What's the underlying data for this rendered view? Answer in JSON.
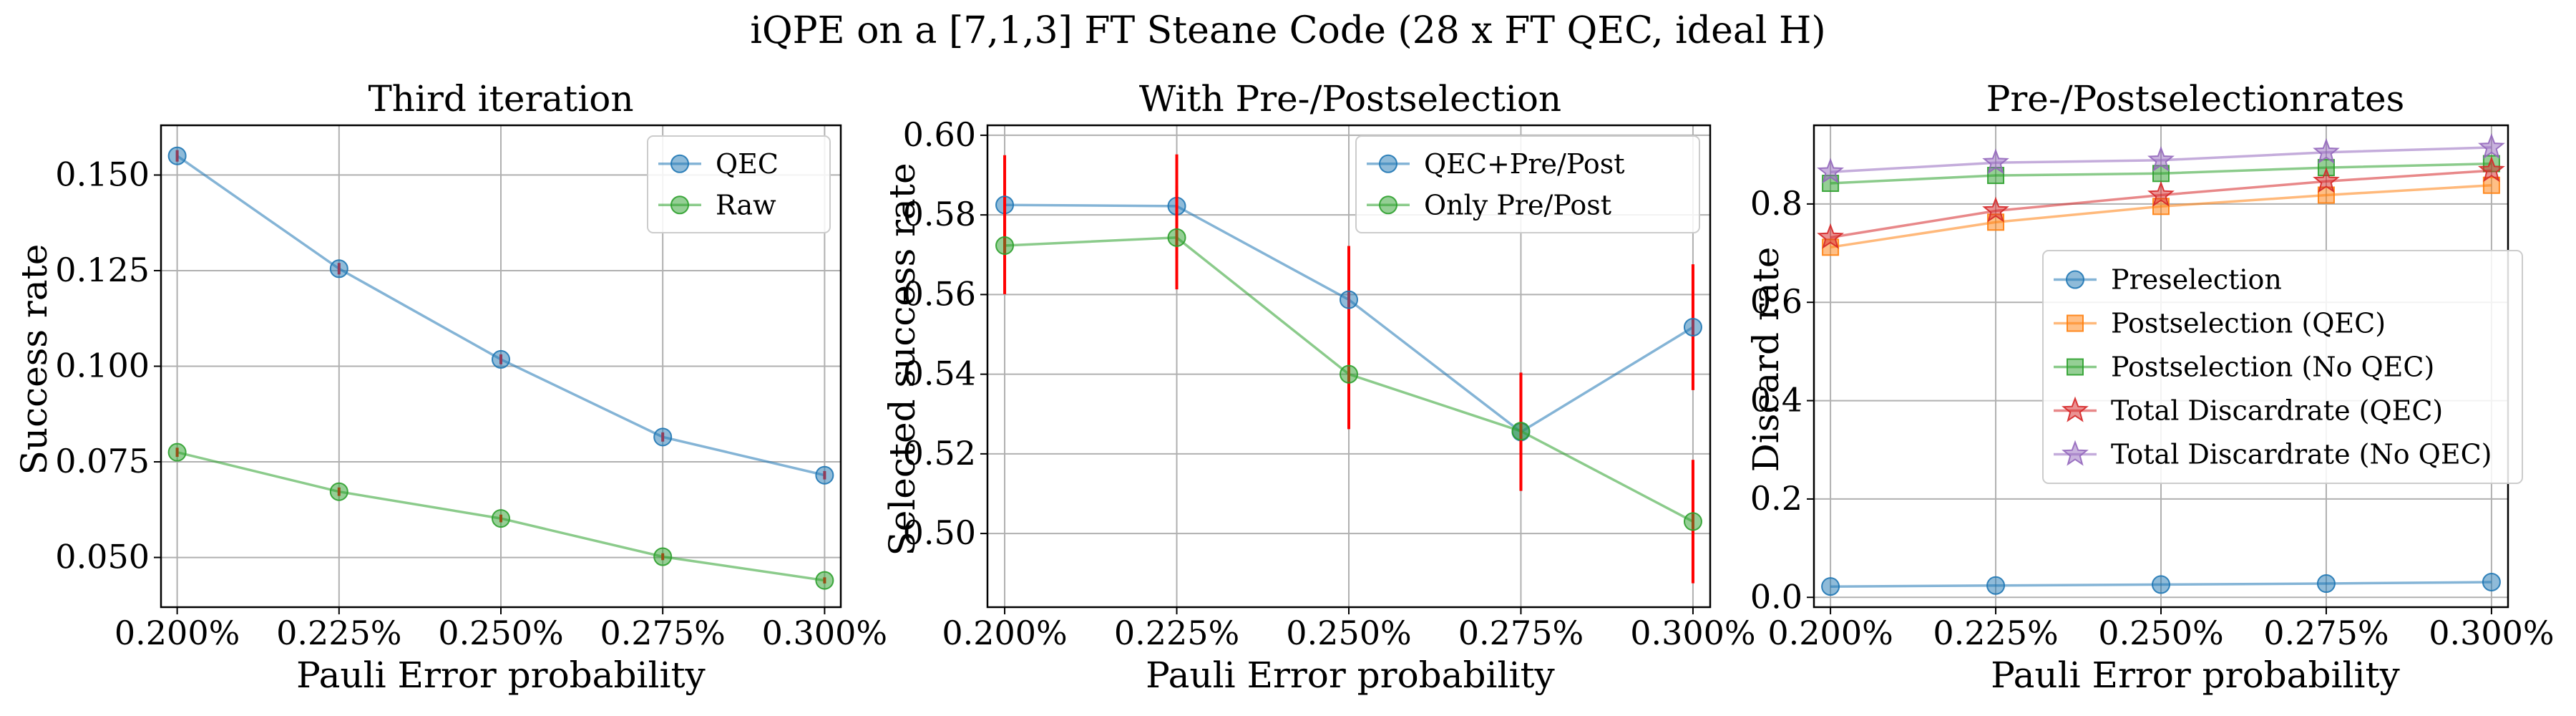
{
  "figure_title": "iQPE on a [7,1,3] FT Steane Code (28 x FT QEC, ideal H)",
  "colors": {
    "blue": "#1f77b4",
    "green": "#2ca02c",
    "orange": "#ff7f0e",
    "red": "#d62728",
    "purple": "#9467bd",
    "errorbar": "#ff0000"
  },
  "chart_data": [
    {
      "type": "line",
      "title": "Third iteration",
      "xlabel": "Pauli Error probability",
      "ylabel": "Success rate",
      "x": [
        0.2,
        0.225,
        0.25,
        0.275,
        0.3
      ],
      "xtick_labels": [
        "0.200%",
        "0.225%",
        "0.250%",
        "0.275%",
        "0.300%"
      ],
      "xlim": [
        0.1975,
        0.3025
      ],
      "ylim": [
        0.037,
        0.163
      ],
      "yticks": [
        0.05,
        0.075,
        0.1,
        0.125,
        0.15
      ],
      "ytick_labels": [
        "0.050",
        "0.075",
        "0.100",
        "0.125",
        "0.150"
      ],
      "grid": true,
      "legend_loc": "upper right",
      "series": [
        {
          "name": "QEC",
          "values": [
            0.155,
            0.1255,
            0.1018,
            0.0815,
            0.0715
          ],
          "err": [
            0.0015,
            0.0015,
            0.0013,
            0.0012,
            0.0011
          ],
          "color": "blue",
          "marker": "circle"
        },
        {
          "name": "Raw",
          "values": [
            0.0775,
            0.0672,
            0.0602,
            0.0502,
            0.044
          ],
          "err": [
            0.0012,
            0.0011,
            0.001,
            0.0009,
            0.0008
          ],
          "color": "green",
          "marker": "circle"
        }
      ]
    },
    {
      "type": "line",
      "title": "With Pre-/Postselection",
      "xlabel": "Pauli Error probability",
      "ylabel": "Selected success rate",
      "x": [
        0.2,
        0.225,
        0.25,
        0.275,
        0.3
      ],
      "xtick_labels": [
        "0.200%",
        "0.225%",
        "0.250%",
        "0.275%",
        "0.300%"
      ],
      "xlim": [
        0.1975,
        0.3025
      ],
      "ylim": [
        0.4815,
        0.6025
      ],
      "yticks": [
        0.5,
        0.52,
        0.54,
        0.56,
        0.58,
        0.6
      ],
      "ytick_labels": [
        "0.50",
        "0.52",
        "0.54",
        "0.56",
        "0.58",
        "0.60"
      ],
      "grid": true,
      "legend_loc": "upper right",
      "series": [
        {
          "name": "QEC+Pre/Post",
          "values": [
            0.5825,
            0.5822,
            0.5587,
            0.5255,
            0.5518
          ],
          "err": [
            0.0125,
            0.013,
            0.0135,
            0.0148,
            0.0158
          ],
          "color": "blue",
          "marker": "circle"
        },
        {
          "name": "Only Pre/Post",
          "values": [
            0.5723,
            0.5743,
            0.54,
            0.5257,
            0.503
          ],
          "err": [
            0.0122,
            0.013,
            0.0138,
            0.0147,
            0.0155
          ],
          "color": "green",
          "marker": "circle"
        }
      ]
    },
    {
      "type": "line",
      "title": "Pre-/Postselectionrates",
      "xlabel": "Pauli Error probability",
      "ylabel": "Discard rate",
      "x": [
        0.2,
        0.225,
        0.25,
        0.275,
        0.3
      ],
      "xtick_labels": [
        "0.200%",
        "0.225%",
        "0.250%",
        "0.275%",
        "0.300%"
      ],
      "xlim": [
        0.1975,
        0.3025
      ],
      "ylim": [
        -0.02,
        0.96
      ],
      "yticks": [
        0.0,
        0.2,
        0.4,
        0.6,
        0.8
      ],
      "ytick_labels": [
        "0.0",
        "0.2",
        "0.4",
        "0.6",
        "0.8"
      ],
      "grid": true,
      "legend_loc": "center right",
      "series": [
        {
          "name": "Preselection",
          "values": [
            0.022,
            0.024,
            0.026,
            0.028,
            0.031
          ],
          "color": "blue",
          "marker": "circle"
        },
        {
          "name": "Postselection (QEC)",
          "values": [
            0.712,
            0.763,
            0.795,
            0.818,
            0.838
          ],
          "color": "orange",
          "marker": "square"
        },
        {
          "name": "Postselection (No QEC)",
          "values": [
            0.842,
            0.858,
            0.862,
            0.874,
            0.882
          ],
          "color": "green",
          "marker": "square"
        },
        {
          "name": "Total Discardrate (QEC)",
          "values": [
            0.732,
            0.786,
            0.818,
            0.846,
            0.868
          ],
          "color": "red",
          "marker": "star"
        },
        {
          "name": "Total Discardrate (No QEC)",
          "values": [
            0.865,
            0.884,
            0.889,
            0.905,
            0.915
          ],
          "color": "purple",
          "marker": "star"
        }
      ]
    }
  ]
}
